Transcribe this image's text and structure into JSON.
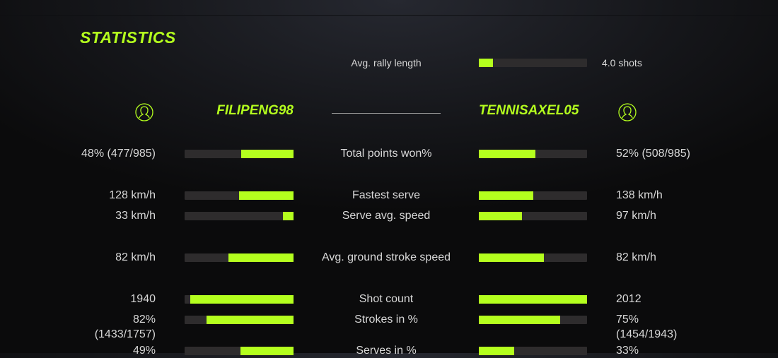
{
  "title": "STATISTICS",
  "accent": "#b4ff1e",
  "rally": {
    "label": "Avg. rally length",
    "value": "4.0 shots",
    "fill": 0.13
  },
  "players": {
    "left": {
      "name": "FILIPENG98",
      "icon": "user-icon"
    },
    "right": {
      "name": "TENNISAXEL05",
      "icon": "user-icon"
    }
  },
  "stats": [
    {
      "label": "Total points won%",
      "left": "48% (477/985)",
      "right": "52% (508/985)",
      "left_fill": 0.48,
      "right_fill": 0.52
    },
    {
      "label": "Fastest serve",
      "left": "128 km/h",
      "right": "138 km/h",
      "left_fill": 0.5,
      "right_fill": 0.5
    },
    {
      "label": "Serve avg. speed",
      "left": "33 km/h",
      "right": "97 km/h",
      "left_fill": 0.1,
      "right_fill": 0.4
    },
    {
      "label": "Avg. ground stroke speed",
      "left": "82 km/h",
      "right": "82 km/h",
      "left_fill": 0.6,
      "right_fill": 0.6
    },
    {
      "label": "Shot count",
      "left": "1940",
      "right": "2012",
      "left_fill": 0.95,
      "right_fill": 1.0
    },
    {
      "label": "Strokes in %",
      "left": "82%",
      "left2": "(1433/1757)",
      "right": "75%",
      "right2": "(1454/1943)",
      "left_fill": 0.8,
      "right_fill": 0.75
    },
    {
      "label": "Serves in %",
      "left": "49%",
      "right": "33%",
      "left_fill": 0.49,
      "right_fill": 0.33
    }
  ]
}
